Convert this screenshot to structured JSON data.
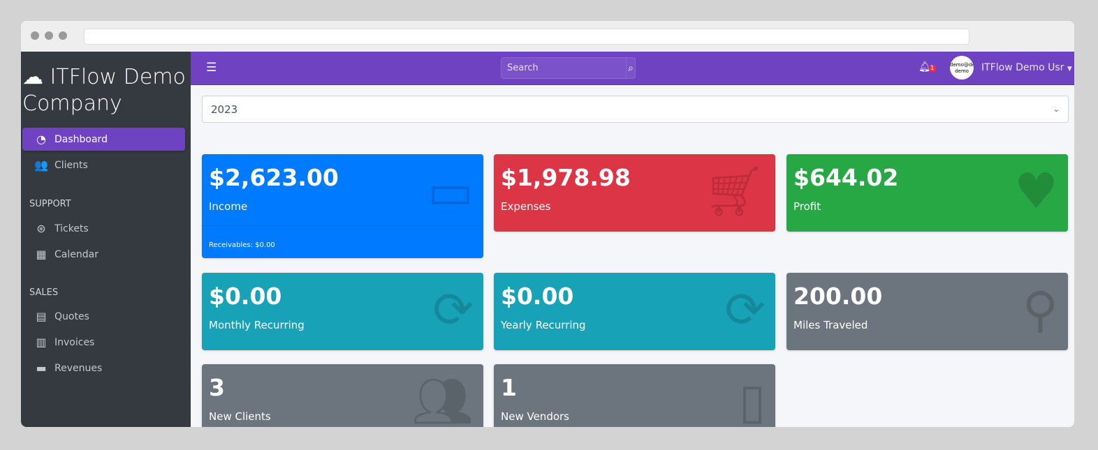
{
  "brand": {
    "name": "ITFlow Demo Company",
    "icon": "cloud-icon"
  },
  "sidebar": {
    "items": [
      {
        "label": "Dashboard",
        "icon": "gauge-icon",
        "active": true
      },
      {
        "label": "Clients",
        "icon": "users-icon"
      }
    ],
    "sections": [
      {
        "header": "SUPPORT",
        "items": [
          {
            "label": "Tickets",
            "icon": "life-ring-icon"
          },
          {
            "label": "Calendar",
            "icon": "calendar-icon"
          }
        ]
      },
      {
        "header": "SALES",
        "items": [
          {
            "label": "Quotes",
            "icon": "file-icon"
          },
          {
            "label": "Invoices",
            "icon": "invoice-icon"
          },
          {
            "label": "Revenues",
            "icon": "credit-card-icon"
          }
        ]
      }
    ]
  },
  "topbar": {
    "search_placeholder": "Search",
    "notifications": "1",
    "avatar_text": "demo@demo demo",
    "user": "ITFlow Demo Usr",
    "accent": "#6f42c1"
  },
  "year_select": "2023",
  "cards": [
    {
      "value": "$2,623.00",
      "label": "Income",
      "footer": "Receivables: $0.00",
      "color": "#007bff"
    },
    {
      "value": "$1,978.98",
      "label": "Expenses",
      "color": "#dc3545"
    },
    {
      "value": "$644.02",
      "label": "Profit",
      "color": "#28a745"
    },
    {
      "value": "$0.00",
      "label": "Monthly Recurring",
      "color": "#17a2b8"
    },
    {
      "value": "$0.00",
      "label": "Yearly Recurring",
      "color": "#17a2b8"
    },
    {
      "value": "200.00",
      "label": "Miles Traveled",
      "color": "#6c757d"
    },
    {
      "value": "3",
      "label": "New Clients",
      "color": "#6c757d"
    },
    {
      "value": "1",
      "label": "New Vendors",
      "color": "#6c757d"
    }
  ]
}
